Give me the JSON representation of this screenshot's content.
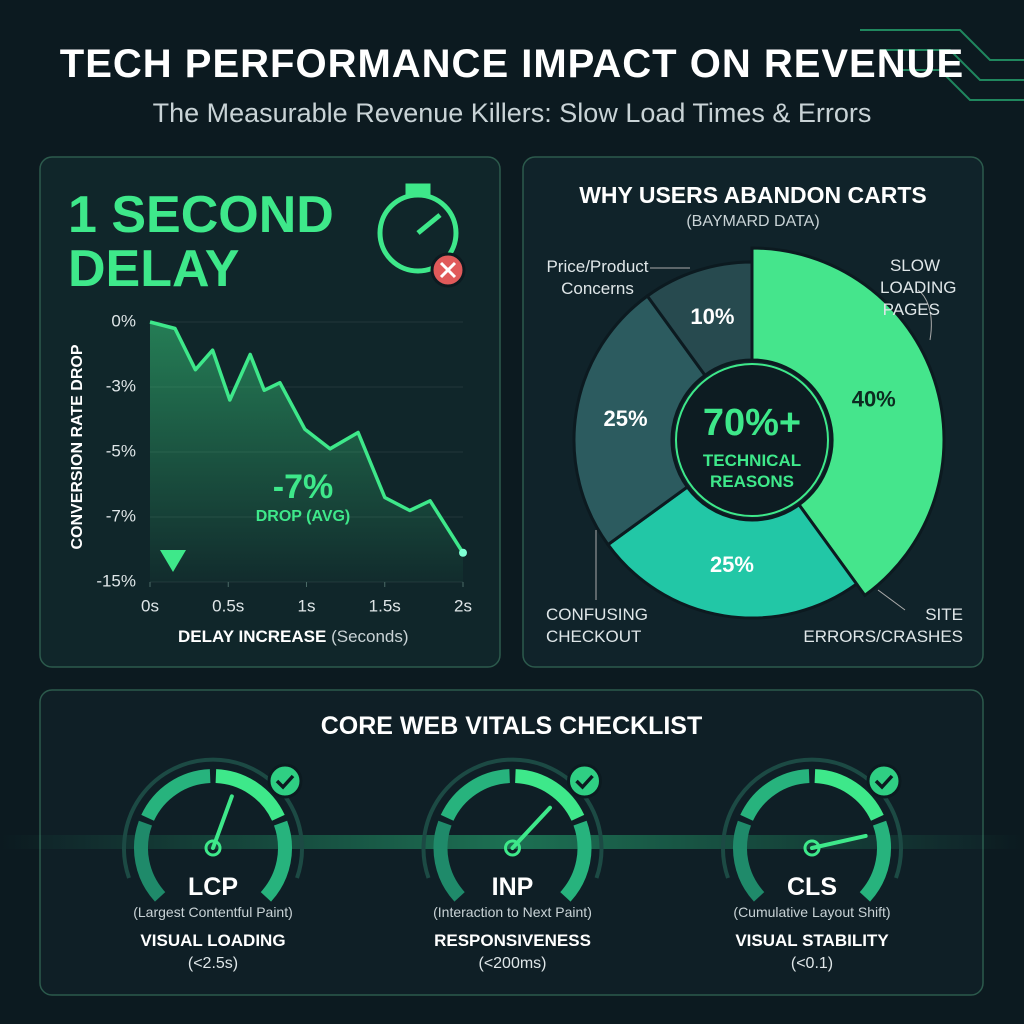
{
  "header": {
    "title": "TECH PERFORMANCE IMPACT ON REVENUE",
    "subtitle": "The Measurable Revenue Killers: Slow Load Times & Errors"
  },
  "chart_data": [
    {
      "type": "line",
      "title": "1 SECOND DELAY",
      "x_label": "DELAY INCREASE",
      "x_label_unit": "(Seconds)",
      "y_label": "CONVERSION RATE DROP",
      "x": [
        0,
        0.16,
        0.29,
        0.4,
        0.51,
        0.64,
        0.73,
        0.83,
        0.99,
        1.15,
        1.33,
        1.5,
        1.66,
        1.79,
        2.0
      ],
      "values": [
        0,
        -0.3,
        -2.2,
        -1.3,
        -3.4,
        -1.5,
        -3.1,
        -2.8,
        -4.3,
        -4.9,
        -4.4,
        -6.4,
        -6.8,
        -6.5,
        -11.4
      ],
      "color": "#3ee88a",
      "xlim": [
        0,
        2
      ],
      "xticks": [
        {
          "value": 0,
          "label": "0s"
        },
        {
          "value": 0.5,
          "label": "0.5s"
        },
        {
          "value": 1,
          "label": "1s"
        },
        {
          "value": 1.5,
          "label": "1.5s"
        },
        {
          "value": 2,
          "label": "2s"
        }
      ],
      "ylim": [
        -15,
        0
      ],
      "yticks": [
        {
          "value": 0,
          "label": "0%"
        },
        {
          "value": -3,
          "label": "-3%"
        },
        {
          "value": -5,
          "label": "-5%"
        },
        {
          "value": -7,
          "label": "-7%"
        },
        {
          "value": -15,
          "label": "-15%"
        }
      ],
      "annotation": {
        "value": "-7%",
        "label": "DROP (AVG)"
      }
    },
    {
      "type": "donut",
      "title": "WHY USERS ABANDON CARTS",
      "subtitle": "(BAYMARD DATA)",
      "categories": [
        "SLOW LOADING PAGES",
        "SITE ERRORS/CRASHES",
        "CONFUSING CHECKOUT",
        "Price/Product Concerns"
      ],
      "values": [
        40,
        25,
        25,
        10
      ],
      "value_labels": [
        "40%",
        "25%",
        "25%",
        "10%"
      ],
      "colors": [
        "#45e58c",
        "#22c7a6",
        "#2c5b5f",
        "#274a4f"
      ],
      "center_label": "70%+",
      "center_sublabel": "TECHNICAL REASONS"
    }
  ],
  "vitals": {
    "title": "CORE WEB VITALS CHECKLIST",
    "items": [
      {
        "name": "LCP",
        "full_name": "(Largest Contentful Paint)",
        "category": "VISUAL LOADING",
        "threshold": "(<2.5s)"
      },
      {
        "name": "INP",
        "full_name": "(Interaction to Next Paint)",
        "category": "RESPONSIVENESS",
        "threshold": "(<200ms)"
      },
      {
        "name": "CLS",
        "full_name": "(Cumulative Layout Shift)",
        "category": "VISUAL STABILITY",
        "threshold": "(<0.1)"
      }
    ]
  }
}
